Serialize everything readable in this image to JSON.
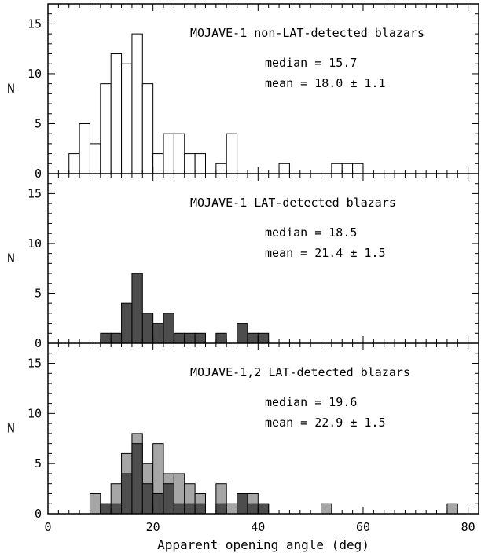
{
  "chart_data": [
    {
      "type": "bar",
      "panel": "top",
      "title": "MOJAVE-1 non-LAT-detected blazars",
      "stats": {
        "median": "median = 15.7",
        "mean": "mean = 18.0 ± 1.1"
      },
      "ylabel": "N",
      "ylim": [
        0,
        17
      ],
      "y_ticks": [
        0,
        5,
        10,
        15
      ],
      "bin_width": 2,
      "series": [
        {
          "style": "outline",
          "x": [
            4,
            6,
            8,
            10,
            12,
            14,
            16,
            18,
            20,
            22,
            24,
            26,
            28,
            32,
            34,
            44,
            54,
            56,
            58
          ],
          "values": [
            2,
            5,
            3,
            9,
            12,
            11,
            14,
            9,
            2,
            4,
            4,
            2,
            2,
            1,
            4,
            1,
            1,
            1,
            1
          ]
        }
      ]
    },
    {
      "type": "bar",
      "panel": "middle",
      "title": "MOJAVE-1 LAT-detected blazars",
      "stats": {
        "median": "median = 18.5",
        "mean": "mean = 21.4 ± 1.5"
      },
      "ylabel": "N",
      "ylim": [
        0,
        17
      ],
      "y_ticks": [
        0,
        5,
        10,
        15
      ],
      "bin_width": 2,
      "series": [
        {
          "style": "dark",
          "x": [
            10,
            12,
            14,
            16,
            18,
            20,
            22,
            24,
            26,
            28,
            32,
            36,
            38,
            40
          ],
          "values": [
            1,
            1,
            4,
            7,
            3,
            2,
            3,
            1,
            1,
            1,
            1,
            2,
            1,
            1
          ]
        }
      ]
    },
    {
      "type": "bar",
      "panel": "bottom",
      "title": "MOJAVE-1,2 LAT-detected blazars",
      "stats": {
        "median": "median = 19.6",
        "mean": "mean = 22.9 ± 1.5"
      },
      "ylabel": "N",
      "xlabel": "Apparent opening angle (deg)",
      "ylim": [
        0,
        17
      ],
      "xlim": [
        0,
        82
      ],
      "y_ticks": [
        0,
        5,
        10,
        15
      ],
      "x_ticks": [
        0,
        20,
        40,
        60,
        80
      ],
      "bin_width": 2,
      "series": [
        {
          "style": "light",
          "x": [
            8,
            10,
            12,
            14,
            16,
            18,
            20,
            22,
            24,
            26,
            28,
            32,
            34,
            36,
            38,
            40,
            52,
            76
          ],
          "values": [
            2,
            1,
            3,
            6,
            8,
            5,
            7,
            4,
            4,
            3,
            2,
            3,
            1,
            2,
            2,
            1,
            1,
            1
          ]
        },
        {
          "style": "dark",
          "x": [
            10,
            12,
            14,
            16,
            18,
            20,
            22,
            24,
            26,
            28,
            32,
            36,
            38,
            40
          ],
          "values": [
            1,
            1,
            4,
            7,
            3,
            2,
            3,
            1,
            1,
            1,
            1,
            2,
            1,
            1
          ]
        }
      ]
    }
  ]
}
